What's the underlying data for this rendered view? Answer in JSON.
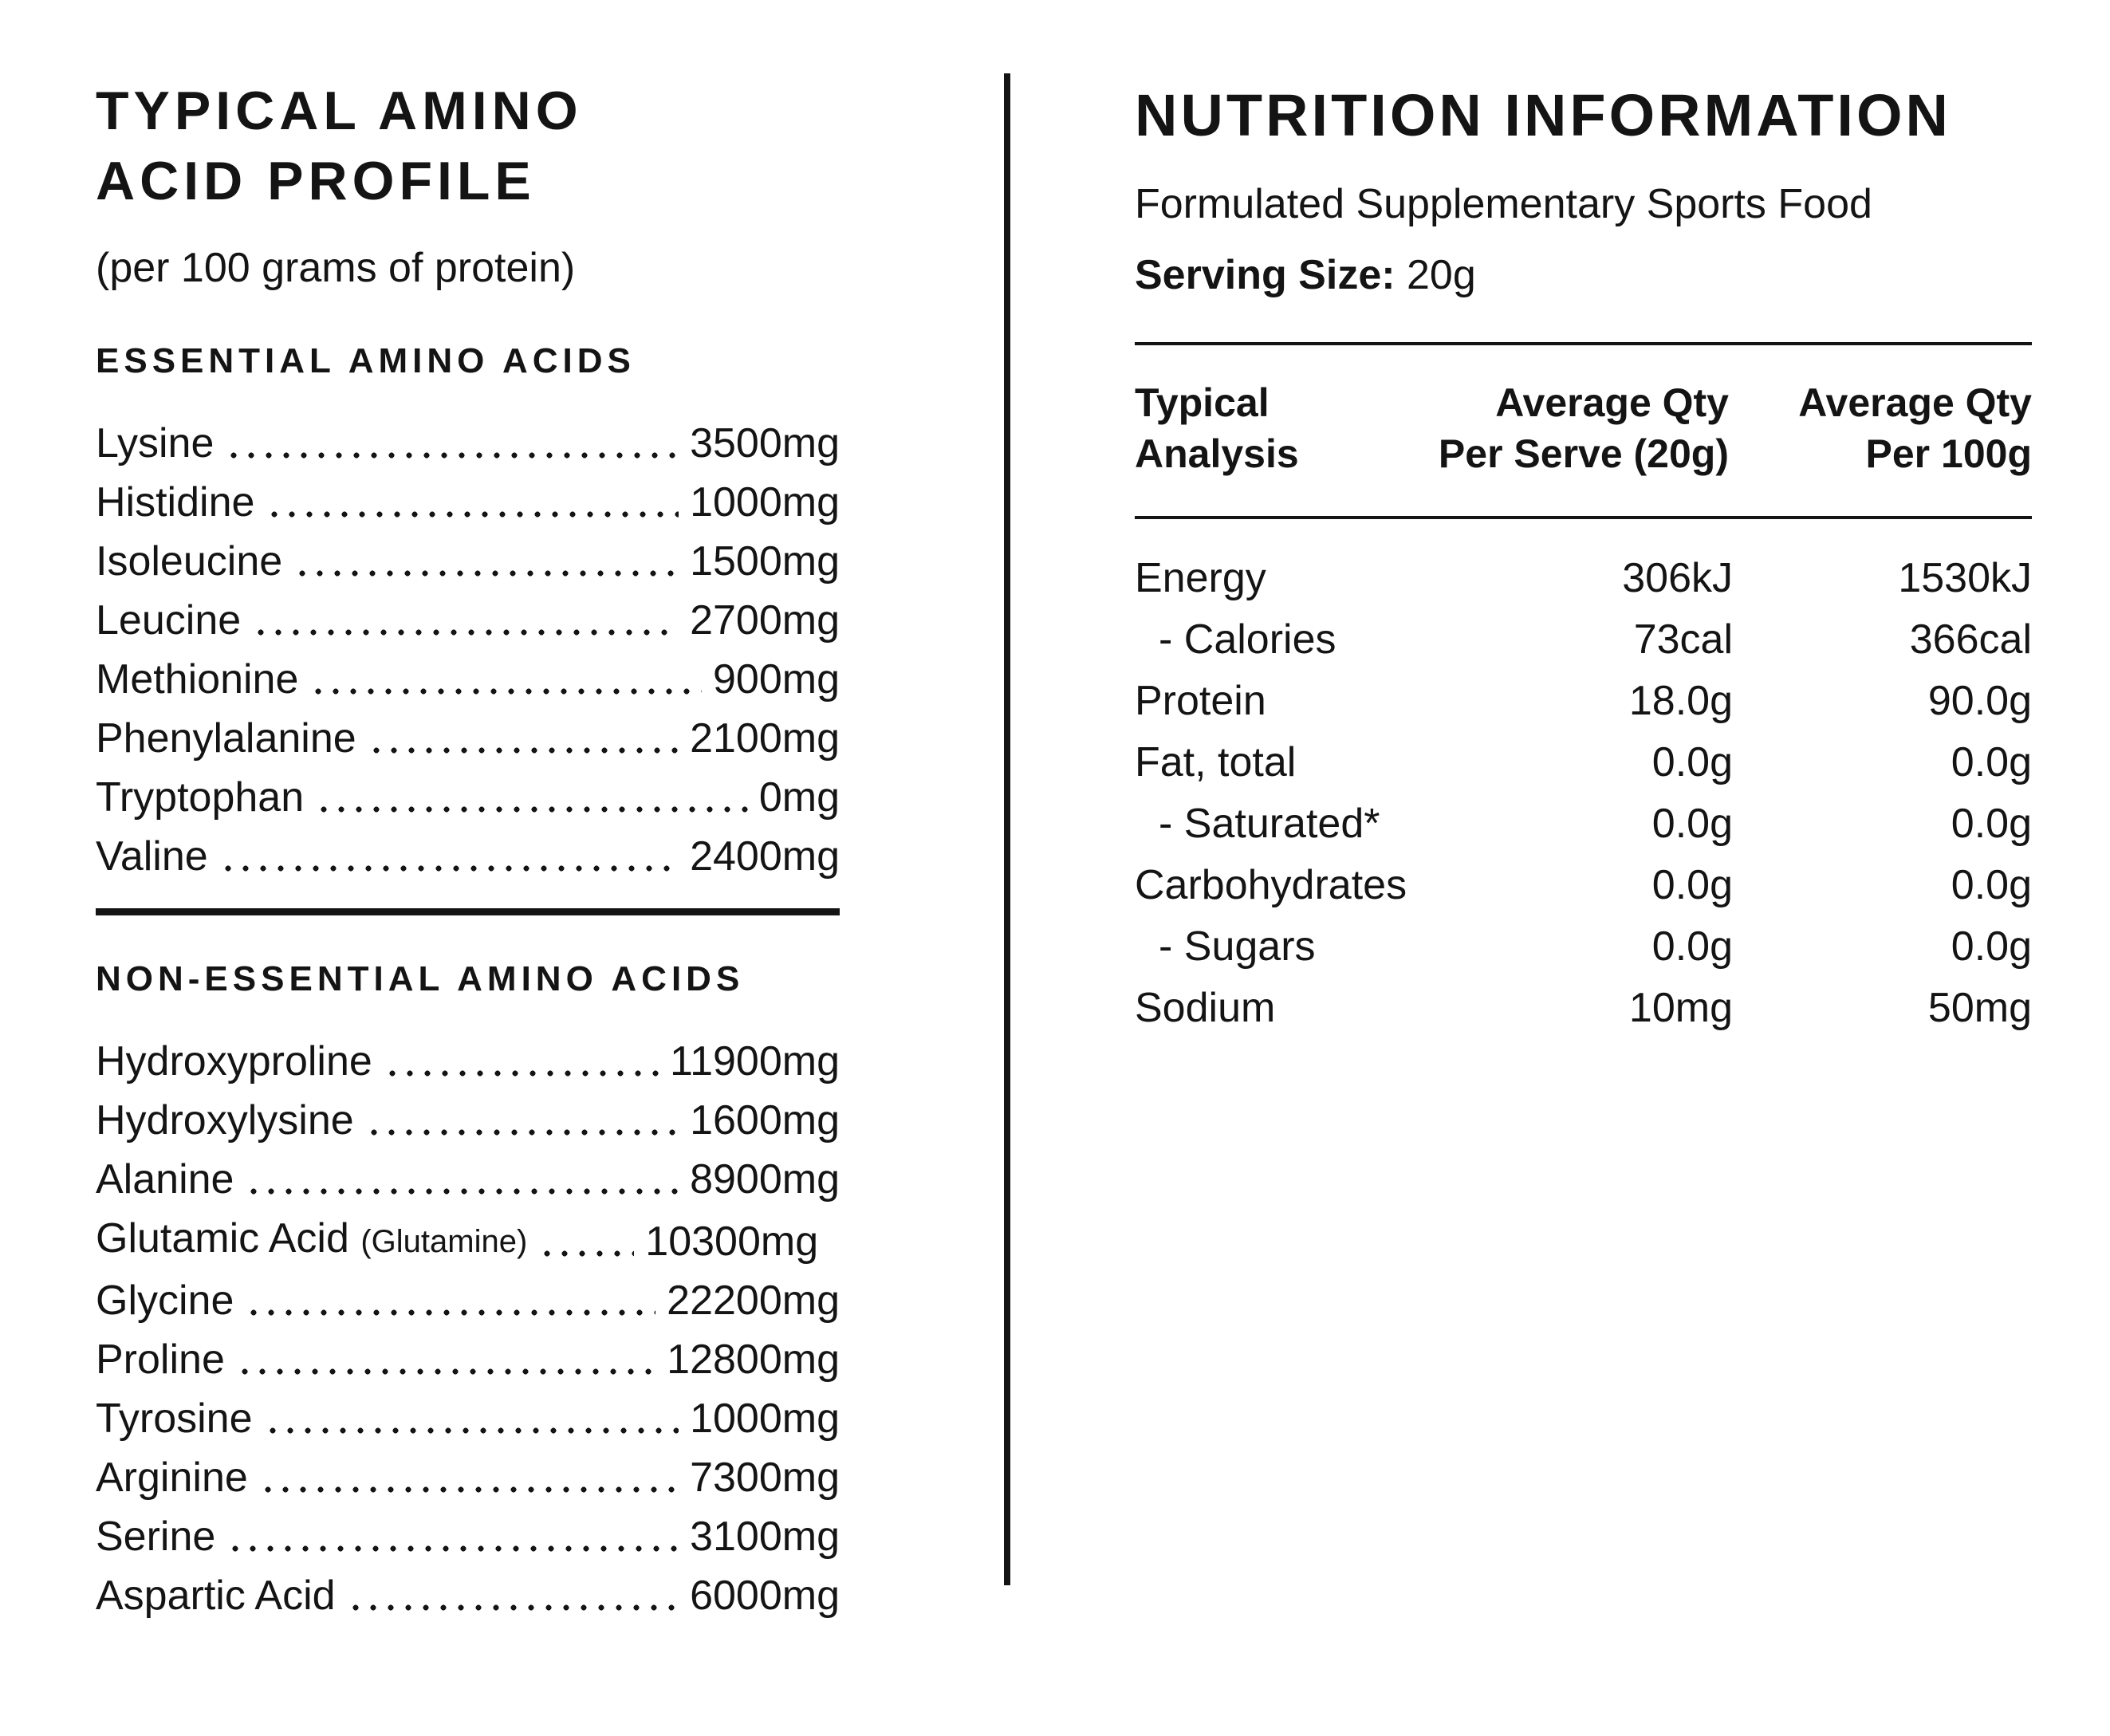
{
  "page": {
    "background_color": "#ffffff",
    "ink_color": "#141414"
  },
  "left_panel": {
    "title_line1": "TYPICAL AMINO",
    "title_line2": "ACID PROFILE",
    "subtitle": "(per 100 grams of protein)",
    "sections": [
      {
        "heading": "ESSENTIAL AMINO ACIDS",
        "items": [
          {
            "name": "Lysine",
            "value": "3500mg"
          },
          {
            "name": "Histidine",
            "value": "1000mg"
          },
          {
            "name": "Isoleucine",
            "value": "1500mg"
          },
          {
            "name": "Leucine",
            "value": "2700mg"
          },
          {
            "name": "Methionine",
            "value": "900mg"
          },
          {
            "name": "Phenylalanine",
            "value": "2100mg"
          },
          {
            "name": "Tryptophan",
            "value": "0mg"
          },
          {
            "name": "Valine",
            "value": "2400mg"
          }
        ]
      },
      {
        "heading": "NON-ESSENTIAL AMINO ACIDS",
        "items": [
          {
            "name": "Hydroxyproline",
            "value": "11900mg"
          },
          {
            "name": "Hydroxylysine",
            "value": "1600mg"
          },
          {
            "name": "Alanine",
            "value": "8900mg"
          },
          {
            "name": "Glutamic Acid",
            "name_note": "(Glutamine)",
            "value": "10300mg"
          },
          {
            "name": "Glycine",
            "value": "22200mg"
          },
          {
            "name": "Proline",
            "value": "12800mg"
          },
          {
            "name": "Tyrosine",
            "value": "1000mg"
          },
          {
            "name": "Arginine",
            "value": "7300mg"
          },
          {
            "name": "Serine",
            "value": "3100mg"
          },
          {
            "name": "Aspartic Acid",
            "value": "6000mg"
          }
        ]
      }
    ]
  },
  "right_panel": {
    "title": "NUTRITION INFORMATION",
    "subtitle": "Formulated Supplementary Sports Food",
    "serving_size_label": "Serving Size:",
    "serving_size_value": "20g",
    "table": {
      "header": {
        "col1_line1": "Typical",
        "col1_line2": "Analysis",
        "col2_line1": "Average Qty",
        "col2_line2": "Per Serve (20g)",
        "col3_line1": "Average Qty",
        "col3_line2": "Per 100g"
      },
      "rows": [
        {
          "label": "Energy",
          "per_serve": "306kJ",
          "per_100g": "1530kJ"
        },
        {
          "label": "- Calories",
          "per_serve": "73cal",
          "per_100g": "366cal"
        },
        {
          "label": "Protein",
          "per_serve": "18.0g",
          "per_100g": "90.0g"
        },
        {
          "label": "Fat, total",
          "per_serve": "0.0g",
          "per_100g": "0.0g"
        },
        {
          "label": "- Saturated*",
          "per_serve": "0.0g",
          "per_100g": "0.0g"
        },
        {
          "label": "Carbohydrates",
          "per_serve": "0.0g",
          "per_100g": "0.0g"
        },
        {
          "label": "- Sugars",
          "per_serve": "0.0g",
          "per_100g": "0.0g"
        },
        {
          "label": "Sodium",
          "per_serve": "10mg",
          "per_100g": "50mg"
        }
      ]
    }
  }
}
